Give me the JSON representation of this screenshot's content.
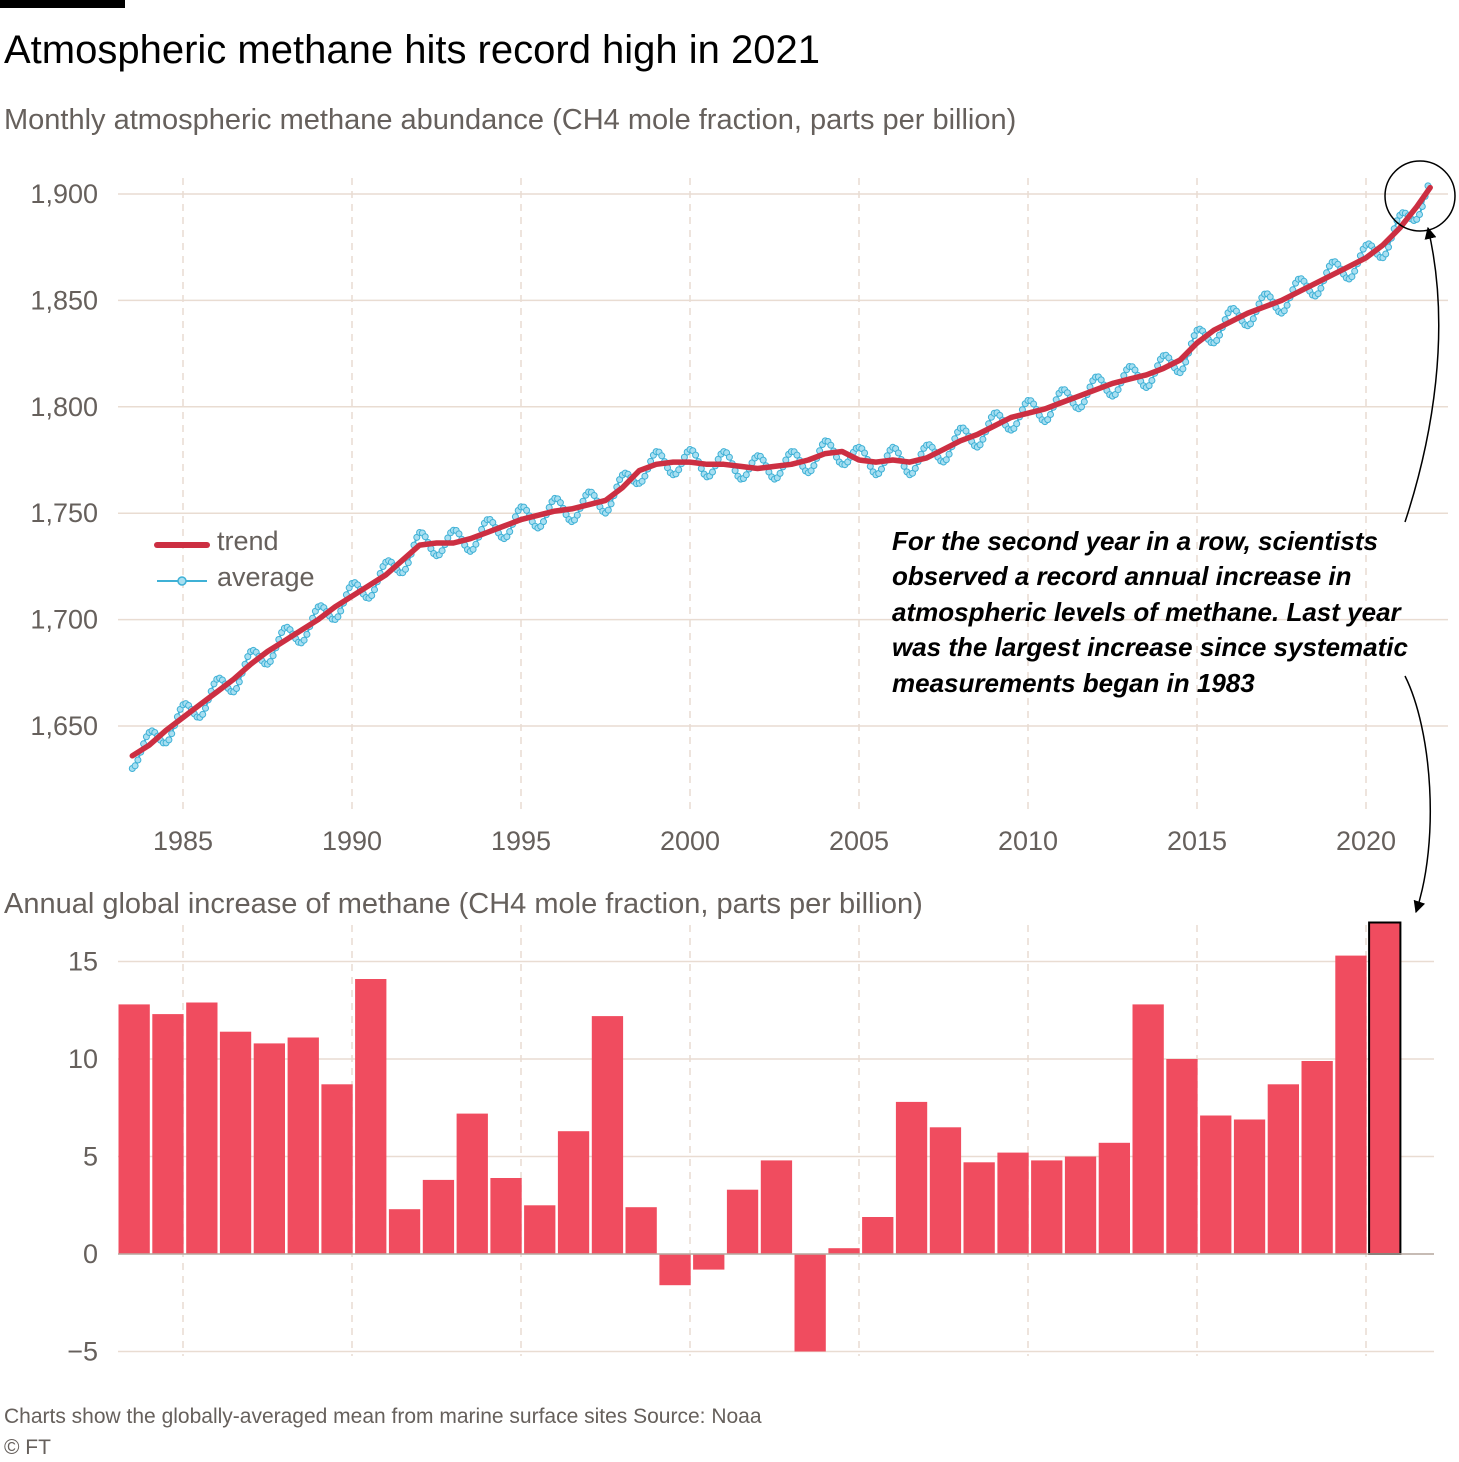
{
  "title": "Atmospheric methane hits record high in 2021",
  "footnote": "Charts show the globally-averaged mean from marine surface sites   Source: Noaa",
  "copyright": "© FT",
  "colors": {
    "trend": "#cc2f42",
    "average": "#3fb1d6",
    "average_marker": "#a8dff1",
    "bars": "#f04c5f",
    "highlight_outline": "#000000",
    "grid": "#e9dcd2",
    "text_secondary": "#66605c"
  },
  "chart_data": [
    {
      "type": "line",
      "subtitle": "Monthly atmospheric methane abundance (CH4 mole fraction, parts per billion)",
      "xlabel": "",
      "ylabel": "",
      "xlim": [
        1983.0,
        2022.0
      ],
      "ylim": [
        1620,
        1910
      ],
      "x_ticks": [
        1985,
        1990,
        1995,
        2000,
        2005,
        2010,
        2015,
        2020
      ],
      "x_tick_labels": [
        "1985",
        "1990",
        "1995",
        "2000",
        "2005",
        "2010",
        "2015",
        "2020"
      ],
      "y_ticks": [
        1650,
        1700,
        1750,
        1800,
        1850,
        1900
      ],
      "y_tick_labels": [
        "1,650",
        "1,700",
        "1,750",
        "1,800",
        "1,850",
        "1,900"
      ],
      "grid": "horizontal solid, vertical dashed",
      "legend": {
        "placement": "left-middle",
        "entries": [
          "trend",
          "average"
        ]
      },
      "series": [
        {
          "name": "trend",
          "style": "thick line",
          "x": [
            1983.5,
            1984.0,
            1984.5,
            1985.0,
            1985.5,
            1986.0,
            1986.5,
            1987.0,
            1987.5,
            1988.0,
            1988.5,
            1989.0,
            1989.5,
            1990.0,
            1990.5,
            1991.0,
            1991.5,
            1992.0,
            1992.5,
            1993.0,
            1993.5,
            1994.0,
            1994.5,
            1995.0,
            1995.5,
            1996.0,
            1996.5,
            1997.0,
            1997.5,
            1998.0,
            1998.5,
            1999.0,
            1999.5,
            2000.0,
            2000.5,
            2001.0,
            2001.5,
            2002.0,
            2002.5,
            2003.0,
            2003.5,
            2004.0,
            2004.5,
            2005.0,
            2005.5,
            2006.0,
            2006.5,
            2007.0,
            2007.5,
            2008.0,
            2008.5,
            2009.0,
            2009.5,
            2010.0,
            2010.5,
            2011.0,
            2011.5,
            2012.0,
            2012.5,
            2013.0,
            2013.5,
            2014.0,
            2014.5,
            2015.0,
            2015.5,
            2016.0,
            2016.5,
            2017.0,
            2017.5,
            2018.0,
            2018.5,
            2019.0,
            2019.5,
            2020.0,
            2020.5,
            2021.0,
            2021.5,
            2021.9
          ],
          "values": [
            1636,
            1641,
            1648,
            1654,
            1660,
            1666,
            1672,
            1679,
            1685,
            1690,
            1695,
            1700,
            1706,
            1711,
            1716,
            1721,
            1728,
            1735,
            1736,
            1736,
            1738,
            1741,
            1744,
            1747,
            1749,
            1751,
            1752,
            1754,
            1756,
            1762,
            1770,
            1773,
            1774,
            1774,
            1773,
            1773,
            1772,
            1771,
            1772,
            1773,
            1775,
            1778,
            1779,
            1775,
            1774,
            1775,
            1774,
            1776,
            1780,
            1784,
            1787,
            1791,
            1795,
            1797,
            1799,
            1802,
            1805,
            1808,
            1811,
            1813,
            1815,
            1818,
            1822,
            1830,
            1836,
            1840,
            1844,
            1847,
            1850,
            1854,
            1858,
            1862,
            1866,
            1870,
            1876,
            1884,
            1894,
            1903
          ]
        },
        {
          "name": "average",
          "style": "line with circle markers",
          "x_start": 1983.5,
          "x_step": 0.0833333,
          "seasonal_amplitude": 6,
          "note": "monthly values = trend plus seasonal cycle (peak around January, trough around August)"
        }
      ],
      "annotations": [
        {
          "text_lines": [
            "For the second year in a row, scientists",
            "observed a record annual increase in",
            "atmospheric levels of methane. Last year",
            "was the largest increase since systematic",
            "measurements began in 1983"
          ],
          "points_to": [
            "circled 2021 values in the top chart",
            "the 2021 bar in the bottom chart"
          ]
        }
      ]
    },
    {
      "type": "bar",
      "subtitle": "Annual global increase of methane (CH4 mole fraction, parts per billion)",
      "xlabel": "",
      "ylabel": "",
      "categories": [
        1984,
        1985,
        1986,
        1987,
        1988,
        1989,
        1990,
        1991,
        1992,
        1993,
        1994,
        1995,
        1996,
        1997,
        1998,
        1999,
        2000,
        2001,
        2002,
        2003,
        2004,
        2005,
        2006,
        2007,
        2008,
        2009,
        2010,
        2011,
        2012,
        2013,
        2014,
        2015,
        2016,
        2017,
        2018,
        2019,
        2020,
        2021
      ],
      "values": [
        12.8,
        12.3,
        12.9,
        11.4,
        10.8,
        11.1,
        8.7,
        14.1,
        2.3,
        3.8,
        7.2,
        3.9,
        2.5,
        6.3,
        12.2,
        2.4,
        -1.6,
        -0.8,
        3.3,
        4.8,
        -5.0,
        0.3,
        1.9,
        7.8,
        6.5,
        4.7,
        5.2,
        4.8,
        5.0,
        5.7,
        12.8,
        10.0,
        7.1,
        6.9,
        8.7,
        9.9,
        15.3,
        17.0
      ],
      "highlight": 2021,
      "ylim": [
        -5,
        17
      ],
      "y_ticks": [
        -5,
        0,
        5,
        10,
        15
      ],
      "y_tick_labels": [
        "−5",
        "0",
        "5",
        "10",
        "15"
      ],
      "x_ticks": [
        1985,
        1990,
        1995,
        2000,
        2005,
        2010,
        2015,
        2020
      ],
      "grid": "horizontal solid, vertical dashed"
    }
  ]
}
